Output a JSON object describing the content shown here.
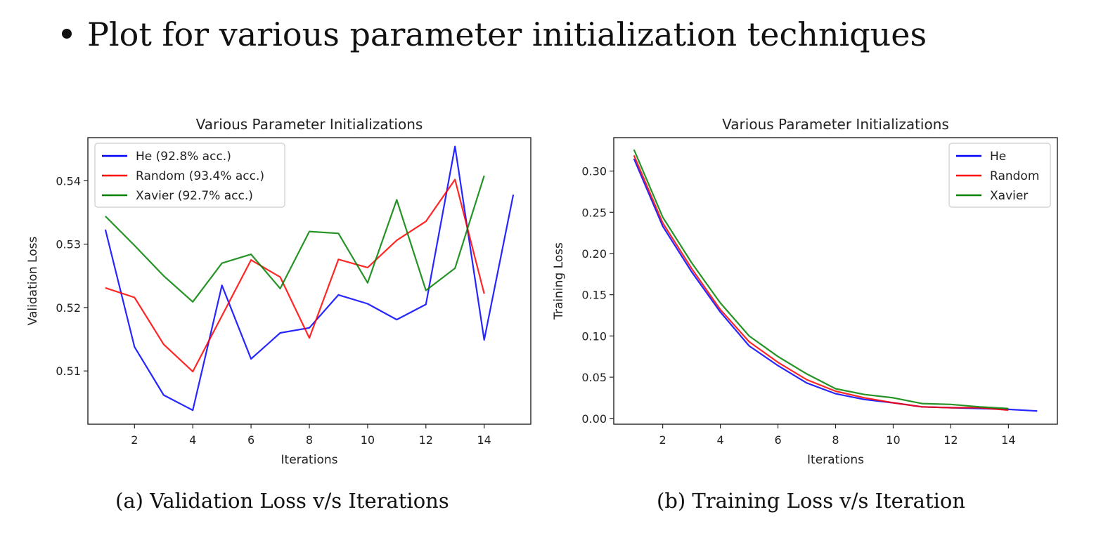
{
  "slide": {
    "bullet": "Plot for various parameter initialization techniques",
    "caption_a": "(a) Validation Loss v/s Iterations",
    "caption_b": "(b) Training Loss v/s Iteration"
  },
  "chart_data": [
    {
      "type": "line",
      "title": "Various Parameter Initializations",
      "xlabel": "Iterations",
      "ylabel": "Validation Loss",
      "xlim": [
        0.4,
        15.6
      ],
      "ylim": [
        0.5016,
        0.5468
      ],
      "xticks": [
        2,
        4,
        6,
        8,
        10,
        12,
        14
      ],
      "yticks": [
        0.51,
        0.52,
        0.53,
        0.54
      ],
      "legend_position": "upper-left",
      "series": [
        {
          "name": "He (92.8% acc.)",
          "color": "#0000ff",
          "x": [
            1,
            2,
            3,
            4,
            5,
            6,
            7,
            8,
            9,
            10,
            11,
            12,
            13,
            14,
            15
          ],
          "y": [
            0.5323,
            0.5138,
            0.5062,
            0.5038,
            0.5235,
            0.5119,
            0.516,
            0.5168,
            0.522,
            0.5206,
            0.5181,
            0.5205,
            0.5454,
            0.5149,
            0.5378
          ]
        },
        {
          "name": "Random (93.4% acc.)",
          "color": "#ff0000",
          "x": [
            1,
            2,
            3,
            4,
            5,
            6,
            7,
            8,
            9,
            10,
            11,
            12,
            13,
            14
          ],
          "y": [
            0.5231,
            0.5216,
            0.5142,
            0.5099,
            0.5187,
            0.5275,
            0.5248,
            0.5152,
            0.5276,
            0.5263,
            0.5306,
            0.5336,
            0.5402,
            0.5222
          ]
        },
        {
          "name": "Xavier (92.7% acc.)",
          "color": "#008000",
          "x": [
            1,
            2,
            3,
            4,
            5,
            6,
            7,
            8,
            9,
            10,
            11,
            12,
            13,
            14
          ],
          "y": [
            0.5344,
            0.5298,
            0.525,
            0.5209,
            0.527,
            0.5284,
            0.523,
            0.532,
            0.5317,
            0.5239,
            0.537,
            0.5227,
            0.5262,
            0.5408
          ]
        }
      ]
    },
    {
      "type": "line",
      "title": "Various Parameter Initializations",
      "xlabel": "Iterations",
      "ylabel": "Training Loss",
      "xlim": [
        0.3,
        15.7
      ],
      "ylim": [
        -0.007,
        0.3405
      ],
      "xticks": [
        2,
        4,
        6,
        8,
        10,
        12,
        14
      ],
      "yticks": [
        0.0,
        0.05,
        0.1,
        0.15,
        0.2,
        0.25,
        0.3
      ],
      "ytick_labels": [
        "0.00",
        "0.05",
        "0.10",
        "0.15",
        "0.20",
        "0.25",
        "0.30"
      ],
      "legend_position": "upper-right",
      "series": [
        {
          "name": "He",
          "color": "#0000ff",
          "x": [
            1,
            2,
            3,
            4,
            5,
            6,
            7,
            8,
            9,
            10,
            11,
            12,
            13,
            14,
            15
          ],
          "y": [
            0.315,
            0.233,
            0.178,
            0.129,
            0.088,
            0.064,
            0.043,
            0.03,
            0.023,
            0.019,
            0.014,
            0.013,
            0.012,
            0.011,
            0.009
          ]
        },
        {
          "name": "Random",
          "color": "#ff0000",
          "x": [
            1,
            2,
            3,
            4,
            5,
            6,
            7,
            8,
            9,
            10,
            11,
            12,
            13,
            14
          ],
          "y": [
            0.319,
            0.237,
            0.182,
            0.132,
            0.093,
            0.068,
            0.047,
            0.033,
            0.025,
            0.019,
            0.014,
            0.013,
            0.013,
            0.01
          ]
        },
        {
          "name": "Xavier",
          "color": "#008000",
          "x": [
            1,
            2,
            3,
            4,
            5,
            6,
            7,
            8,
            9,
            10,
            11,
            12,
            13,
            14
          ],
          "y": [
            0.326,
            0.244,
            0.189,
            0.14,
            0.1,
            0.075,
            0.054,
            0.036,
            0.029,
            0.025,
            0.018,
            0.017,
            0.014,
            0.012
          ]
        }
      ]
    }
  ]
}
